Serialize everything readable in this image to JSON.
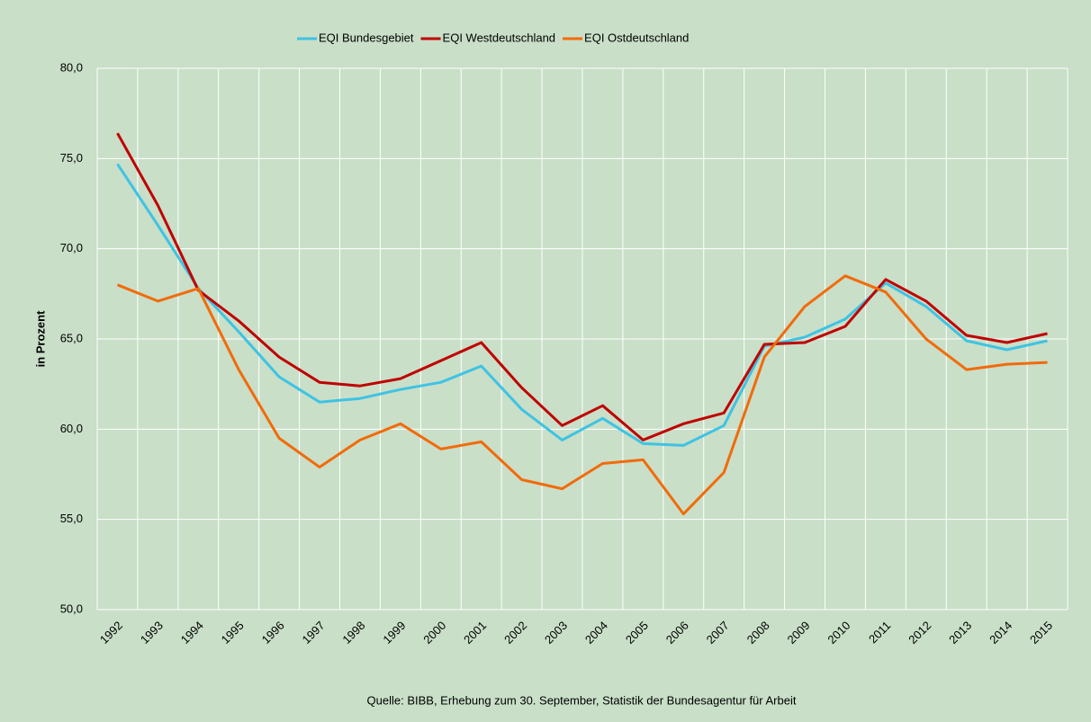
{
  "chart_data": {
    "type": "line",
    "y_label": "in Prozent",
    "source": "Quelle: BIBB, Erhebung  zum  30. September, Statistik der Bundesagentur  für Arbeit",
    "categories": [
      "1992",
      "1993",
      "1994",
      "1995",
      "1996",
      "1997",
      "1998",
      "1999",
      "2000",
      "2001",
      "2002",
      "2003",
      "2004",
      "2005",
      "2006",
      "2007",
      "2008",
      "2009",
      "2010",
      "2011",
      "2012",
      "2013",
      "2014",
      "2015"
    ],
    "series": [
      {
        "name": "EQI Bundesgebiet",
        "color": "#3ec3e3",
        "values": [
          74.7,
          71.3,
          67.8,
          65.4,
          62.9,
          61.5,
          61.7,
          62.2,
          62.6,
          63.5,
          61.1,
          59.4,
          60.6,
          59.2,
          59.1,
          60.2,
          64.6,
          65.1,
          66.1,
          68.1,
          66.8,
          64.9,
          64.4,
          64.9
        ]
      },
      {
        "name": "EQI Westdeutschland",
        "color": "#c00000",
        "values": [
          76.4,
          72.4,
          67.7,
          66.0,
          64.0,
          62.6,
          62.4,
          62.8,
          63.8,
          64.8,
          62.3,
          60.2,
          61.3,
          59.4,
          60.3,
          60.9,
          64.7,
          64.8,
          65.7,
          68.3,
          67.1,
          65.2,
          64.8,
          65.3
        ]
      },
      {
        "name": "EQI Ostdeutschland",
        "color": "#f26b0a",
        "values": [
          68.0,
          67.1,
          67.8,
          63.3,
          59.5,
          57.9,
          59.4,
          60.3,
          58.9,
          59.3,
          57.2,
          56.7,
          58.1,
          58.3,
          55.3,
          57.6,
          64.0,
          66.8,
          68.5,
          67.6,
          65.0,
          63.3,
          63.6,
          63.7
        ]
      }
    ],
    "ylim": [
      50,
      80
    ],
    "yticks": [
      {
        "value": 50,
        "label": "50,0"
      },
      {
        "value": 55,
        "label": "55,0"
      },
      {
        "value": 60,
        "label": "60,0"
      },
      {
        "value": 65,
        "label": "65,0"
      },
      {
        "value": 70,
        "label": "70,0"
      },
      {
        "value": 75,
        "label": "75,0"
      },
      {
        "value": 80,
        "label": "80,0"
      }
    ],
    "grid": true,
    "legend": "top"
  }
}
